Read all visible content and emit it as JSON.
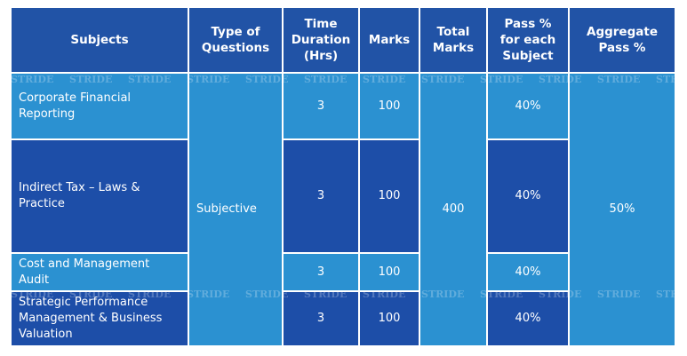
{
  "header": [
    "Subjects",
    "Type of Questions",
    "Time Duration (Hrs)",
    "Marks",
    "Total Marks",
    "Pass % for each Subject",
    "Aggregate Pass %"
  ],
  "rows": [
    {
      "subject": "Corporate Financial Reporting",
      "duration": "3",
      "marks": "100",
      "pass": "40%"
    },
    {
      "subject": "Indirect Tax – Laws & Practice",
      "duration": "3",
      "marks": "100",
      "pass": "40%"
    },
    {
      "subject": "Cost and Management Audit",
      "duration": "3",
      "marks": "100",
      "pass": "40%"
    },
    {
      "subject": "Strategic Performance Management & Business Valuation",
      "duration": "3",
      "marks": "100",
      "pass": "40%"
    }
  ],
  "type_of_questions": "Subjective",
  "total_marks": "400",
  "aggregate_pass": "50%",
  "watermark": "STRIDE"
}
